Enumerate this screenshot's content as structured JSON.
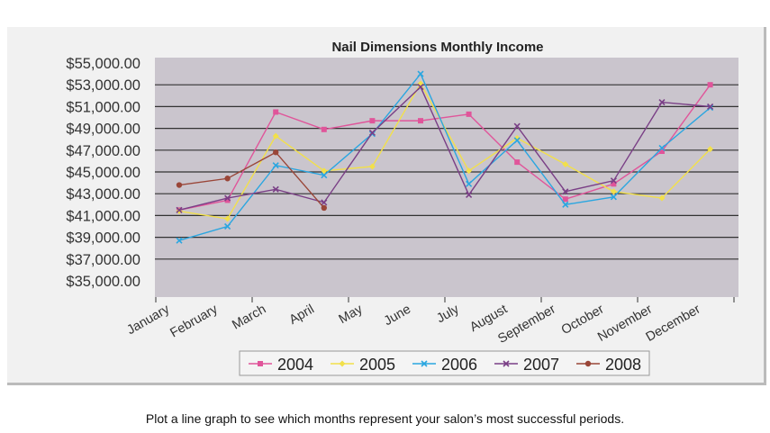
{
  "chart_data": {
    "type": "line",
    "title": "Nail Dimensions Monthly Income",
    "categories": [
      "January",
      "February",
      "March",
      "April",
      "May",
      "June",
      "July",
      "August",
      "September",
      "October",
      "November",
      "December"
    ],
    "ylim": [
      35000,
      55000
    ],
    "yticks": [
      "$35,000.00",
      "$37,000.00",
      "$39,000.00",
      "$41,000.00",
      "$43,000.00",
      "$45,000.00",
      "$47,000.00",
      "$49,000.00",
      "$51,000.00",
      "$53,000.00",
      "$55,000.00"
    ],
    "grid": true,
    "legend": "bottom",
    "series": [
      {
        "name": "2004",
        "color": "#e0559a",
        "marker": "square",
        "values": [
          41500,
          42400,
          50500,
          48900,
          49700,
          49700,
          50300,
          45900,
          42500,
          43900,
          46900,
          53000
        ]
      },
      {
        "name": "2005",
        "color": "#f2e04a",
        "marker": "diamond",
        "values": [
          41400,
          40700,
          48300,
          45100,
          45500,
          53100,
          45100,
          48100,
          45700,
          43200,
          42600,
          47100
        ]
      },
      {
        "name": "2006",
        "color": "#2aa6e0",
        "marker": "x",
        "values": [
          38700,
          40000,
          45600,
          44700,
          48500,
          54000,
          43900,
          47900,
          42000,
          42700,
          47200,
          50900
        ]
      },
      {
        "name": "2007",
        "color": "#7a3f86",
        "marker": "x",
        "values": [
          41500,
          42600,
          43400,
          42200,
          48600,
          52800,
          42900,
          49200,
          43200,
          44200,
          51400,
          51000
        ]
      },
      {
        "name": "2008",
        "color": "#9a4638",
        "marker": "circle",
        "values": [
          43800,
          44400,
          46800,
          41700,
          null,
          null,
          null,
          null,
          null,
          null,
          null,
          null
        ]
      }
    ]
  },
  "caption": "Plot a line graph to see which months represent your salon’s most successful periods."
}
